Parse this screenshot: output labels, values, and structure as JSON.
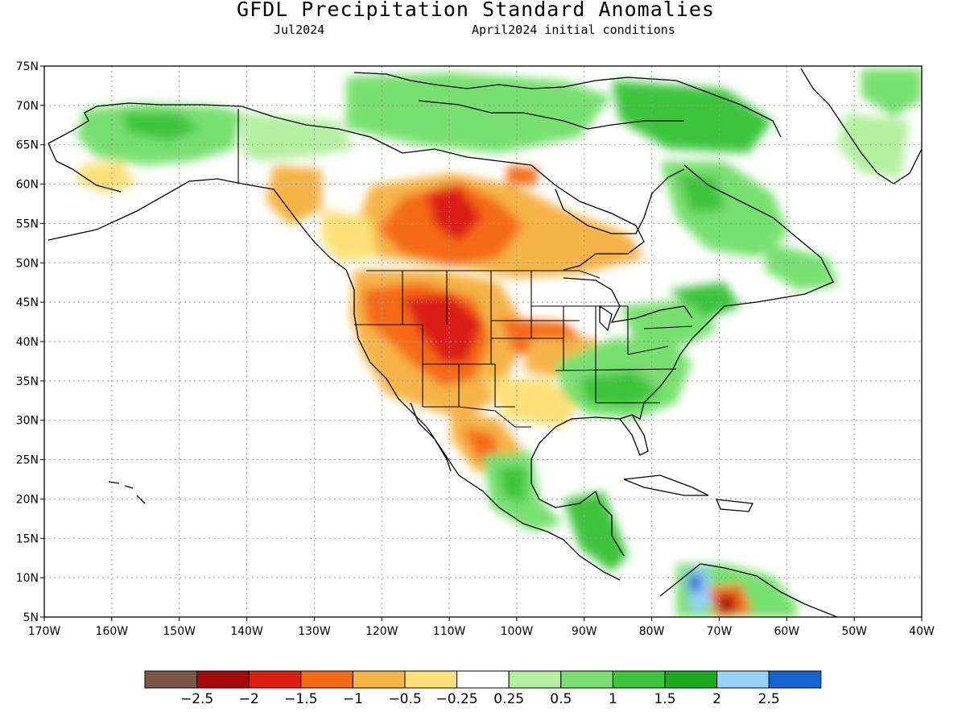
{
  "title": "GFDL Precipitation Standard Anomalies",
  "subtitle_left": "Jul2024",
  "subtitle_right": "April2024 initial conditions",
  "lat_labels": [
    "75N",
    "70N",
    "65N",
    "60N",
    "55N",
    "50N",
    "45N",
    "40N",
    "35N",
    "30N",
    "25N",
    "20N",
    "15N",
    "10N",
    "5N"
  ],
  "lon_labels": [
    "170W",
    "160W",
    "150W",
    "140W",
    "130W",
    "120W",
    "110W",
    "100W",
    "90W",
    "80W",
    "70W",
    "60W",
    "50W",
    "40W"
  ],
  "legend": {
    "colors": [
      "#7d5647",
      "#a50a0a",
      "#dc1e14",
      "#f56a14",
      "#f5b446",
      "#ffe078",
      "#ffffff",
      "#b4f0a0",
      "#78e070",
      "#3cc43c",
      "#1eaa1e",
      "#96d2fa",
      "#1464d2"
    ],
    "labels": [
      "-2.5",
      "-2",
      "-1.5",
      "-1",
      "-0.5",
      "-0.25",
      "0.25",
      "0.5",
      "1",
      "1.5",
      "2",
      "2.5"
    ]
  },
  "colors": {
    "land_outline": "#000000",
    "grid": "#9a9a9a"
  }
}
